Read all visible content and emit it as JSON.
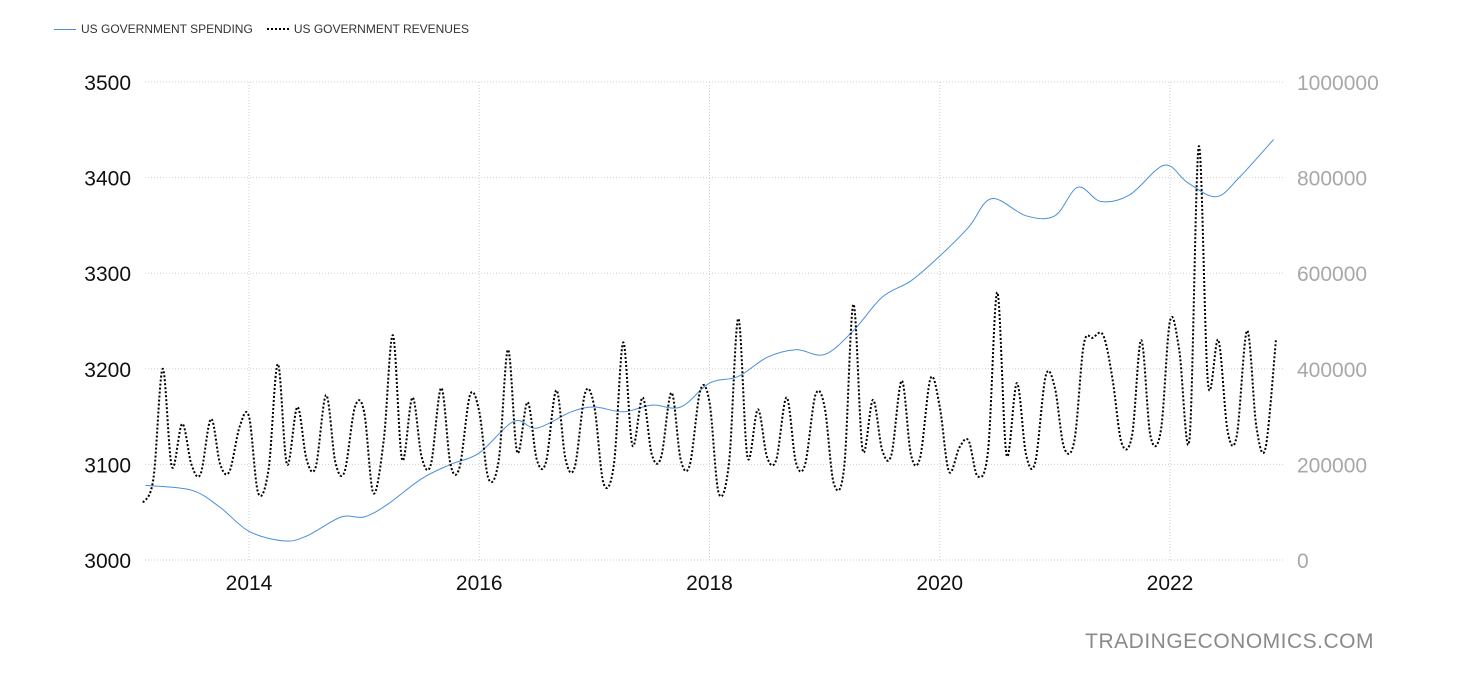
{
  "chart_data": {
    "type": "line",
    "legend_position": "top-left",
    "grid": true,
    "x_axis": {
      "range": [
        2013.1,
        2022.95
      ],
      "ticks": [
        2014,
        2016,
        2018,
        2020,
        2022
      ],
      "tick_labels": [
        "2014",
        "2016",
        "2018",
        "2020",
        "2022"
      ]
    },
    "y_left": {
      "range": [
        3000,
        3500
      ],
      "ticks": [
        3000,
        3100,
        3200,
        3300,
        3400,
        3500
      ],
      "tick_labels": [
        "3000",
        "3100",
        "3200",
        "3300",
        "3400",
        "3500"
      ]
    },
    "y_right": {
      "range": [
        0,
        1000000
      ],
      "ticks": [
        0,
        200000,
        400000,
        600000,
        800000,
        1000000
      ],
      "tick_labels": [
        "0",
        "200000",
        "400000",
        "600000",
        "800000",
        "1000000"
      ]
    },
    "series": [
      {
        "name": "US GOVERNMENT SPENDING",
        "axis": "left",
        "color": "#4a90d9",
        "style": "solid",
        "x": [
          2013.1,
          2013.5,
          2013.75,
          2014.0,
          2014.3,
          2014.5,
          2014.8,
          2015.0,
          2015.2,
          2015.5,
          2015.75,
          2016.0,
          2016.3,
          2016.5,
          2016.8,
          2017.0,
          2017.25,
          2017.5,
          2017.75,
          2018.0,
          2018.25,
          2018.5,
          2018.75,
          2019.0,
          2019.25,
          2019.5,
          2019.75,
          2020.0,
          2020.25,
          2020.45,
          2020.75,
          2021.0,
          2021.2,
          2021.4,
          2021.65,
          2021.95,
          2022.15,
          2022.4,
          2022.6,
          2022.9
        ],
        "values": [
          3078,
          3073,
          3055,
          3030,
          3020,
          3025,
          3045,
          3045,
          3058,
          3085,
          3100,
          3112,
          3145,
          3138,
          3155,
          3160,
          3155,
          3162,
          3160,
          3185,
          3192,
          3212,
          3220,
          3215,
          3240,
          3275,
          3292,
          3318,
          3348,
          3378,
          3360,
          3360,
          3390,
          3375,
          3382,
          3413,
          3395,
          3380,
          3400,
          3440
        ]
      },
      {
        "name": "US GOVERNMENT REVENUES",
        "axis": "right",
        "color": "#000000",
        "style": "dotted",
        "x": [
          2013.08,
          2013.17,
          2013.25,
          2013.33,
          2013.42,
          2013.5,
          2013.58,
          2013.67,
          2013.75,
          2013.83,
          2013.92,
          2014.0,
          2014.08,
          2014.17,
          2014.25,
          2014.33,
          2014.42,
          2014.5,
          2014.58,
          2014.67,
          2014.75,
          2014.83,
          2014.92,
          2015.0,
          2015.08,
          2015.17,
          2015.25,
          2015.33,
          2015.42,
          2015.5,
          2015.58,
          2015.67,
          2015.75,
          2015.83,
          2015.92,
          2016.0,
          2016.08,
          2016.17,
          2016.25,
          2016.33,
          2016.42,
          2016.5,
          2016.58,
          2016.67,
          2016.75,
          2016.83,
          2016.92,
          2017.0,
          2017.08,
          2017.17,
          2017.25,
          2017.33,
          2017.42,
          2017.5,
          2017.58,
          2017.67,
          2017.75,
          2017.83,
          2017.92,
          2018.0,
          2018.08,
          2018.17,
          2018.25,
          2018.33,
          2018.42,
          2018.5,
          2018.58,
          2018.67,
          2018.75,
          2018.83,
          2018.92,
          2019.0,
          2019.08,
          2019.17,
          2019.25,
          2019.33,
          2019.42,
          2019.5,
          2019.58,
          2019.67,
          2019.75,
          2019.83,
          2019.92,
          2020.0,
          2020.08,
          2020.17,
          2020.25,
          2020.33,
          2020.42,
          2020.5,
          2020.58,
          2020.67,
          2020.75,
          2020.83,
          2020.92,
          2021.0,
          2021.08,
          2021.17,
          2021.25,
          2021.33,
          2021.42,
          2021.5,
          2021.58,
          2021.67,
          2021.75,
          2021.83,
          2021.92,
          2022.0,
          2022.08,
          2022.17,
          2022.25,
          2022.33,
          2022.42,
          2022.5,
          2022.58,
          2022.67,
          2022.75,
          2022.83,
          2022.92
        ],
        "values": [
          120000,
          170000,
          400000,
          195000,
          285000,
          200000,
          180000,
          295000,
          200000,
          185000,
          280000,
          300000,
          140000,
          190000,
          410000,
          200000,
          320000,
          210000,
          195000,
          345000,
          205000,
          185000,
          320000,
          310000,
          140000,
          250000,
          470000,
          210000,
          340000,
          215000,
          200000,
          360000,
          200000,
          195000,
          345000,
          310000,
          170000,
          210000,
          440000,
          225000,
          330000,
          210000,
          205000,
          355000,
          210000,
          195000,
          350000,
          320000,
          160000,
          200000,
          455000,
          240000,
          340000,
          220000,
          215000,
          350000,
          210000,
          200000,
          355000,
          330000,
          140000,
          205000,
          505000,
          215000,
          315000,
          215000,
          210000,
          340000,
          205000,
          200000,
          345000,
          320000,
          160000,
          195000,
          535000,
          230000,
          335000,
          230000,
          220000,
          375000,
          220000,
          215000,
          380000,
          320000,
          185000,
          235000,
          250000,
          175000,
          230000,
          560000,
          220000,
          370000,
          220000,
          205000,
          385000,
          360000,
          235000,
          250000,
          450000,
          465000,
          470000,
          380000,
          245000,
          260000,
          460000,
          260000,
          270000,
          500000,
          440000,
          255000,
          865000,
          370000,
          460000,
          270000,
          260000,
          480000,
          280000,
          235000,
          460000
        ]
      }
    ]
  },
  "legend": {
    "spending_label": "US GOVERNMENT SPENDING",
    "revenues_label": "US GOVERNMENT REVENUES"
  },
  "watermark": "TRADINGECONOMICS.COM"
}
